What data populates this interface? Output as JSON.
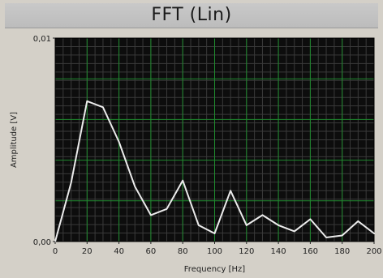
{
  "window": {
    "title": "FFT  (Lin)"
  },
  "colors": {
    "plot_background": "#0d0d0d",
    "grid_major": "#1f8a2e",
    "grid_minor": "#3a3a3a",
    "trace": "#ececec",
    "frame": "#d4d0c8"
  },
  "chart_data": {
    "type": "line",
    "title": "FFT  (Lin)",
    "xlabel": "Frequency [Hz]",
    "ylabel": "Amplitude [V]",
    "xlim": [
      0,
      200
    ],
    "ylim": [
      0,
      0.01
    ],
    "x_ticks": [
      0,
      20,
      40,
      60,
      80,
      100,
      120,
      140,
      160,
      180,
      200
    ],
    "x_tick_labels": [
      "0",
      "20",
      "40",
      "60",
      "80",
      "100",
      "120",
      "140",
      "160",
      "180",
      "200"
    ],
    "y_tick_labels": [
      "0,00",
      "0,01"
    ],
    "y_ticks": [
      0,
      0.01
    ],
    "grid": true,
    "series": [
      {
        "x": [
          0,
          10,
          20,
          30,
          40,
          50,
          60,
          70,
          80,
          90,
          100,
          110,
          120,
          130,
          140,
          150,
          160,
          170,
          180,
          190,
          200
        ],
        "values": [
          0.0,
          0.0029,
          0.0069,
          0.0066,
          0.0049,
          0.0027,
          0.0013,
          0.0016,
          0.003,
          0.0008,
          0.0004,
          0.0025,
          0.0008,
          0.0013,
          0.0008,
          0.0005,
          0.0011,
          0.0002,
          0.0003,
          0.001,
          0.0004
        ]
      }
    ]
  }
}
